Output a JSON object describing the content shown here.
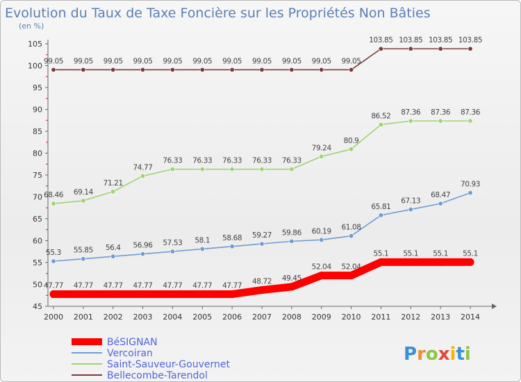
{
  "chart_data": {
    "type": "line",
    "title": "Evolution du Taux de Taxe Foncière sur les Propriétés Non Bâties",
    "subtitle": "(en %)",
    "x": [
      "2000",
      "2001",
      "2002",
      "2003",
      "2004",
      "2005",
      "2006",
      "2007",
      "2008",
      "2009",
      "2010",
      "2011",
      "2012",
      "2013",
      "2014"
    ],
    "ylim": [
      45,
      105
    ],
    "yticks": [
      45,
      50,
      55,
      60,
      65,
      70,
      75,
      80,
      85,
      90,
      95,
      100,
      105
    ],
    "grid": false,
    "legend_position": "bottom-left",
    "series": [
      {
        "name": "BéSIGNAN",
        "color": "#ff0000",
        "values": [
          47.77,
          47.77,
          47.77,
          47.77,
          47.77,
          47.77,
          47.77,
          48.72,
          49.45,
          52.04,
          52.04,
          55.1,
          55.1,
          55.1,
          55.1
        ],
        "labels": [
          "47.77",
          "47.77",
          "47.77",
          "47.77",
          "47.77",
          "47.77",
          "47.77",
          "48.72",
          "49.45",
          "52.04",
          "52.04",
          "55.1",
          "55.1",
          "55.1",
          "55.1"
        ]
      },
      {
        "name": "Vercoiran",
        "color": "#6f9bd1",
        "values": [
          55.3,
          55.85,
          56.4,
          56.96,
          57.53,
          58.1,
          58.68,
          59.27,
          59.86,
          60.19,
          61.08,
          65.81,
          67.13,
          68.47,
          70.93
        ],
        "labels": [
          "55.3",
          "55.85",
          "56.4",
          "56.96",
          "57.53",
          "58.1",
          "58.68",
          "59.27",
          "59.86",
          "60.19",
          "61.08",
          "65.81",
          "67.13",
          "68.47",
          "70.93"
        ]
      },
      {
        "name": "Saint-Sauveur-Gouvernet",
        "color": "#9ed46e",
        "values": [
          68.46,
          69.14,
          71.21,
          74.77,
          76.33,
          76.33,
          76.33,
          76.33,
          76.33,
          79.24,
          80.9,
          86.52,
          87.36,
          87.36,
          87.36
        ],
        "labels": [
          "68.46",
          "69.14",
          "71.21",
          "74.77",
          "76.33",
          "76.33",
          "76.33",
          "76.33",
          "76.33",
          "79.24",
          "80.9",
          "86.52",
          "87.36",
          "87.36",
          "87.36"
        ]
      },
      {
        "name": "Bellecombe-Tarendol",
        "color": "#7a3b3b",
        "values": [
          99.05,
          99.05,
          99.05,
          99.05,
          99.05,
          99.05,
          99.05,
          99.05,
          99.05,
          99.05,
          99.05,
          103.85,
          103.85,
          103.85,
          103.85
        ],
        "labels": [
          "99.05",
          "99.05",
          "99.05",
          "99.05",
          "99.05",
          "99.05",
          "99.05",
          "99.05",
          "99.05",
          "99.05",
          "99.05",
          "103.85",
          "103.85",
          "103.85",
          "103.85"
        ]
      }
    ]
  },
  "logo": {
    "letters": [
      "P",
      "r",
      "o",
      "x",
      "i",
      "t",
      "i"
    ],
    "colors": [
      "#3b8fd8",
      "#f28c28",
      "#8cc63f",
      "#e8423c",
      "#f7b500",
      "#3b8fd8",
      "#8cc63f"
    ]
  }
}
